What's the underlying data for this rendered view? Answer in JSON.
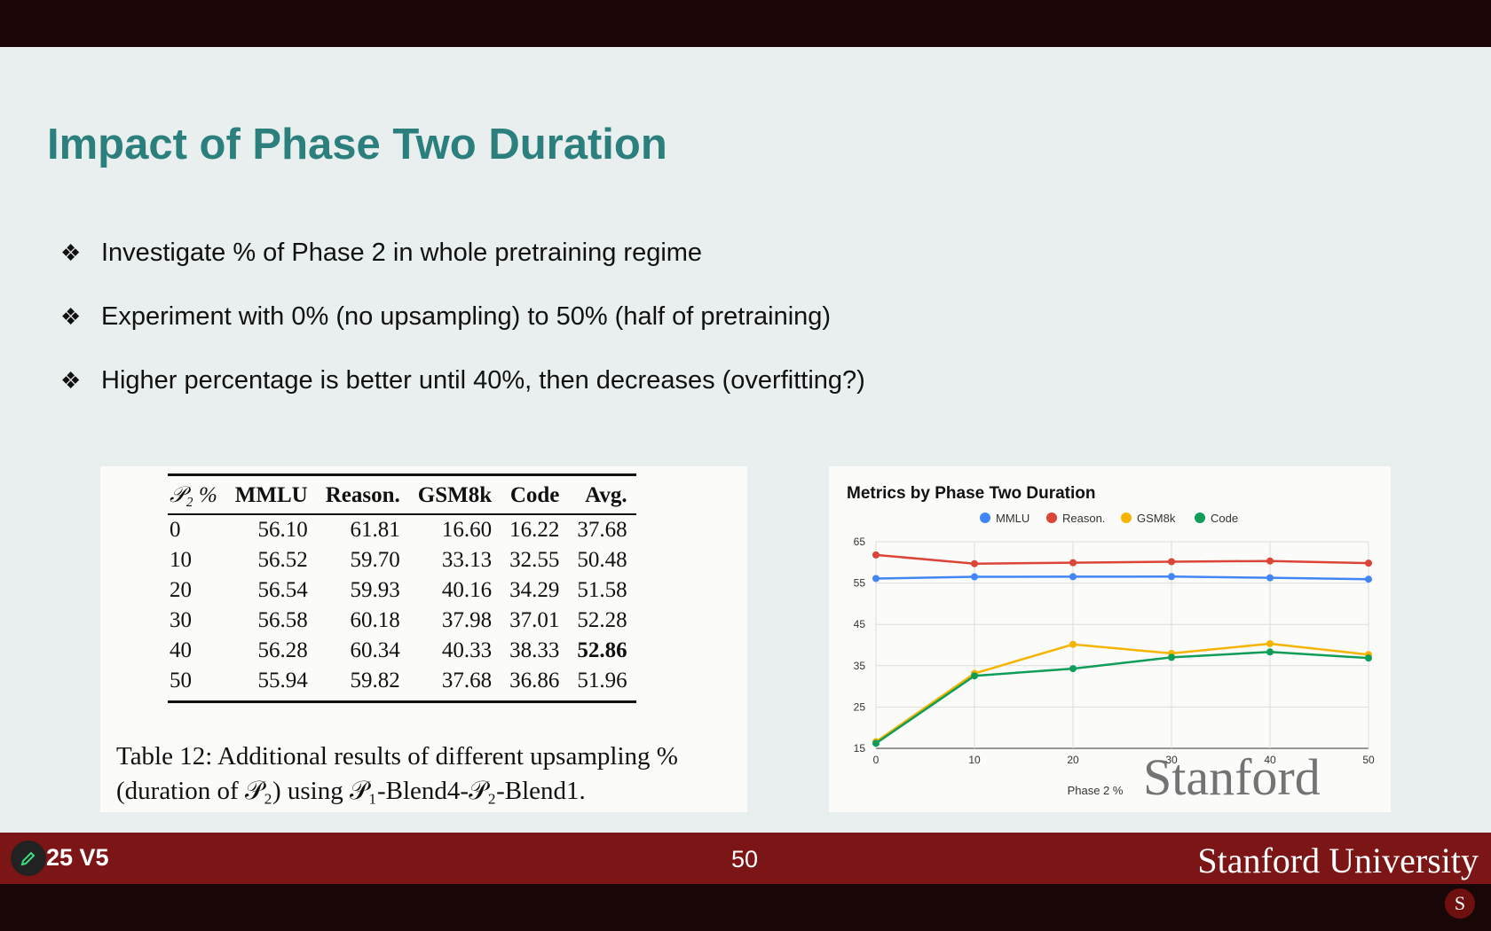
{
  "slide": {
    "title": "Impact of Phase Two Duration",
    "bullets": [
      "Investigate % of Phase 2 in whole pretraining regime",
      "Experiment with 0% (no upsampling) to 50% (half of pretraining)",
      "Higher percentage is better until 40%, then decreases (overfitting?)"
    ],
    "bullet_glyph": "❖"
  },
  "table": {
    "headers": [
      "𝒫₂ %",
      "MMLU",
      "Reason.",
      "GSM8k",
      "Code",
      "Avg."
    ],
    "rows": [
      [
        "0",
        "56.10",
        "61.81",
        "16.60",
        "16.22",
        "37.68"
      ],
      [
        "10",
        "56.52",
        "59.70",
        "33.13",
        "32.55",
        "50.48"
      ],
      [
        "20",
        "56.54",
        "59.93",
        "40.16",
        "34.29",
        "51.58"
      ],
      [
        "30",
        "56.58",
        "60.18",
        "37.98",
        "37.01",
        "52.28"
      ],
      [
        "40",
        "56.28",
        "60.34",
        "40.33",
        "38.33",
        "52.86"
      ],
      [
        "50",
        "55.94",
        "59.82",
        "37.68",
        "36.86",
        "51.96"
      ]
    ],
    "bold_cell": "52.86",
    "caption_line1": "Table 12: Additional results of different upsampling %",
    "caption_line2": "(duration of 𝒫₂) using 𝒫₁-Blend4-𝒫₂-Blend1."
  },
  "chart_data": {
    "type": "line",
    "title": "Metrics by Phase Two Duration",
    "xlabel": "Phase 2 %",
    "ylabel": "",
    "x": [
      0,
      10,
      20,
      30,
      40,
      50
    ],
    "xticks": [
      "0",
      "10",
      "20",
      "30",
      "40",
      "50"
    ],
    "yticks": [
      "15",
      "25",
      "35",
      "45",
      "55",
      "65"
    ],
    "ylim": [
      15,
      65
    ],
    "grid": true,
    "legend_position": "top",
    "series": [
      {
        "name": "MMLU",
        "color": "#4285f4",
        "values": [
          56.1,
          56.52,
          56.54,
          56.58,
          56.28,
          55.94
        ]
      },
      {
        "name": "Reason.",
        "color": "#db4437",
        "values": [
          61.81,
          59.7,
          59.93,
          60.18,
          60.34,
          59.82
        ]
      },
      {
        "name": "GSM8k",
        "color": "#f4b400",
        "values": [
          16.6,
          33.13,
          40.16,
          37.98,
          40.33,
          37.68
        ]
      },
      {
        "name": "Code",
        "color": "#0f9d58",
        "values": [
          16.22,
          32.55,
          34.29,
          37.01,
          38.33,
          36.86
        ]
      }
    ]
  },
  "watermark": "Stanford",
  "footer": {
    "version": "25 V5",
    "page": "50",
    "university": "Stanford University"
  }
}
